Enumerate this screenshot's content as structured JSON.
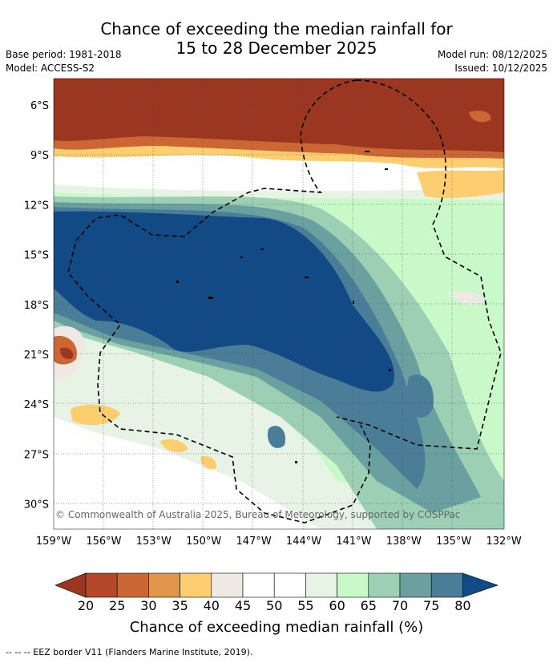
{
  "title": {
    "line1": "Chance of exceeding the median rainfall for",
    "line2": "15 to 28 December 2025"
  },
  "meta": {
    "base_period": "Base period: 1981-2018",
    "model": "Model: ACCESS-S2",
    "model_run": "Model run: 08/12/2025",
    "issued": "Issued: 10/12/2025"
  },
  "map": {
    "copyright": "© Commonwealth of Australia 2025, Bureau of Meteorology, supported by COSPPac",
    "lat_labels": [
      "6°S",
      "9°S",
      "12°S",
      "15°S",
      "18°S",
      "21°S",
      "24°S",
      "27°S",
      "30°S"
    ],
    "lon_labels": [
      "159°W",
      "156°W",
      "153°W",
      "150°W",
      "147°W",
      "144°W",
      "141°W",
      "138°W",
      "135°W",
      "132°W"
    ]
  },
  "colorbar": {
    "ticks": [
      "20",
      "25",
      "30",
      "35",
      "40",
      "45",
      "50",
      "55",
      "60",
      "65",
      "70",
      "75",
      "80"
    ],
    "colors": [
      "#9b3621",
      "#b5472a",
      "#cc6634",
      "#e0954a",
      "#fdce6f",
      "#eee9e3",
      "#ffffff",
      "#ffffff",
      "#e7f4e5",
      "#caf9c9",
      "#9ccfb3",
      "#6aa1a0",
      "#4a7e98",
      "#124a86"
    ],
    "label": "Chance of exceeding median rainfall (%)"
  },
  "footer": "-- -- -- EEZ border V11 (Flanders Marine Institute, 2019)."
}
